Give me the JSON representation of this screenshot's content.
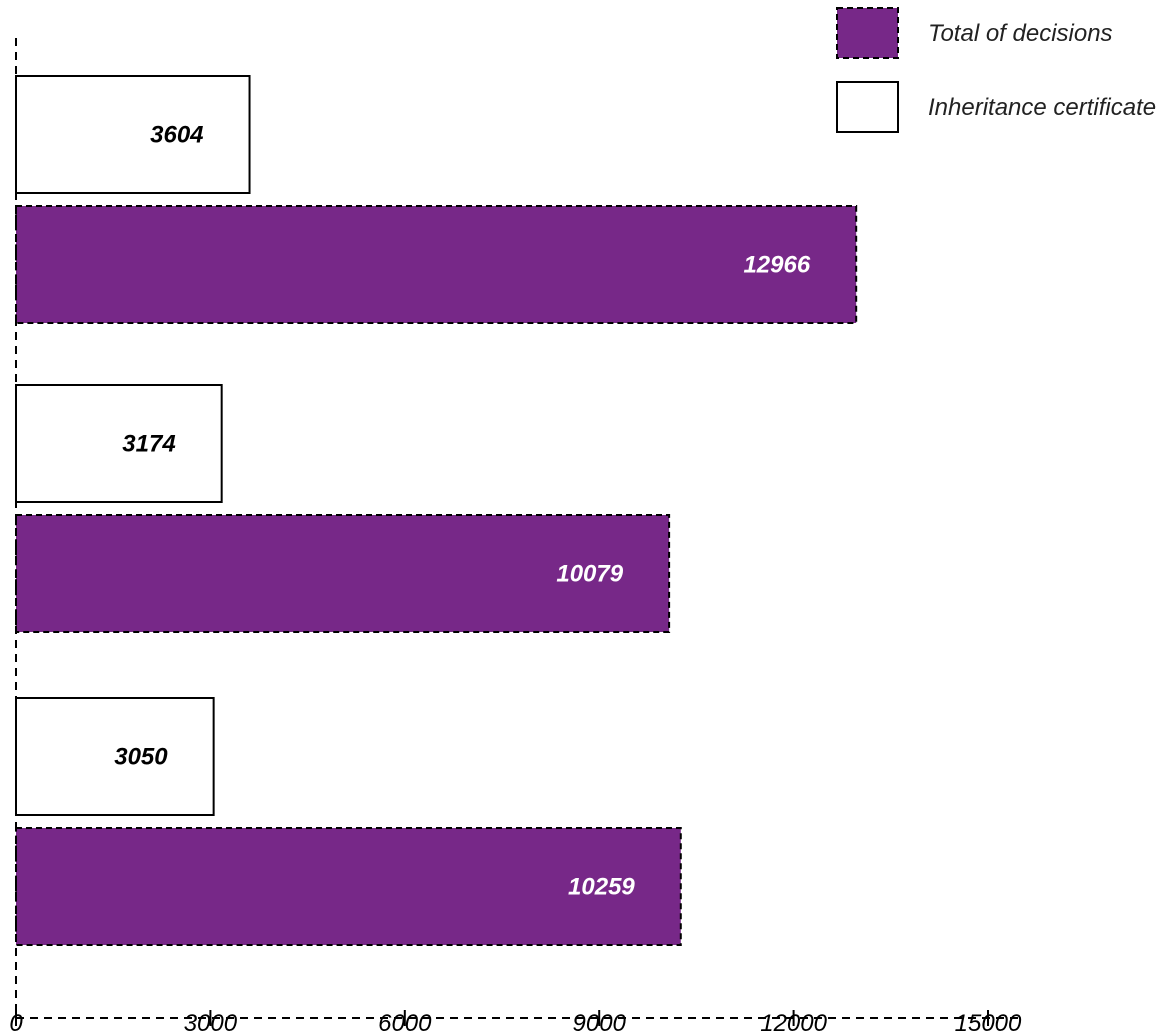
{
  "chart_data": {
    "type": "bar",
    "orientation": "horizontal",
    "groups": 3,
    "series": [
      {
        "name": "Inheritance certificate",
        "values": [
          3604,
          3174,
          3050
        ],
        "color": "#ffffff",
        "border": "solid"
      },
      {
        "name": "Total of decisions",
        "values": [
          12966,
          10079,
          10259
        ],
        "color": "#772888",
        "border": "dashed"
      }
    ],
    "xlim": [
      0,
      15000
    ],
    "x_ticks": [
      0,
      3000,
      6000,
      9000,
      12000,
      15000
    ],
    "x_tick_labels": [
      "0",
      "3000",
      "6000",
      "9000",
      "12000",
      "15000"
    ],
    "title": "",
    "xlabel": "",
    "ylabel": "",
    "grid": false,
    "legend_position": "top-right",
    "legend_order": [
      1,
      0
    ]
  }
}
